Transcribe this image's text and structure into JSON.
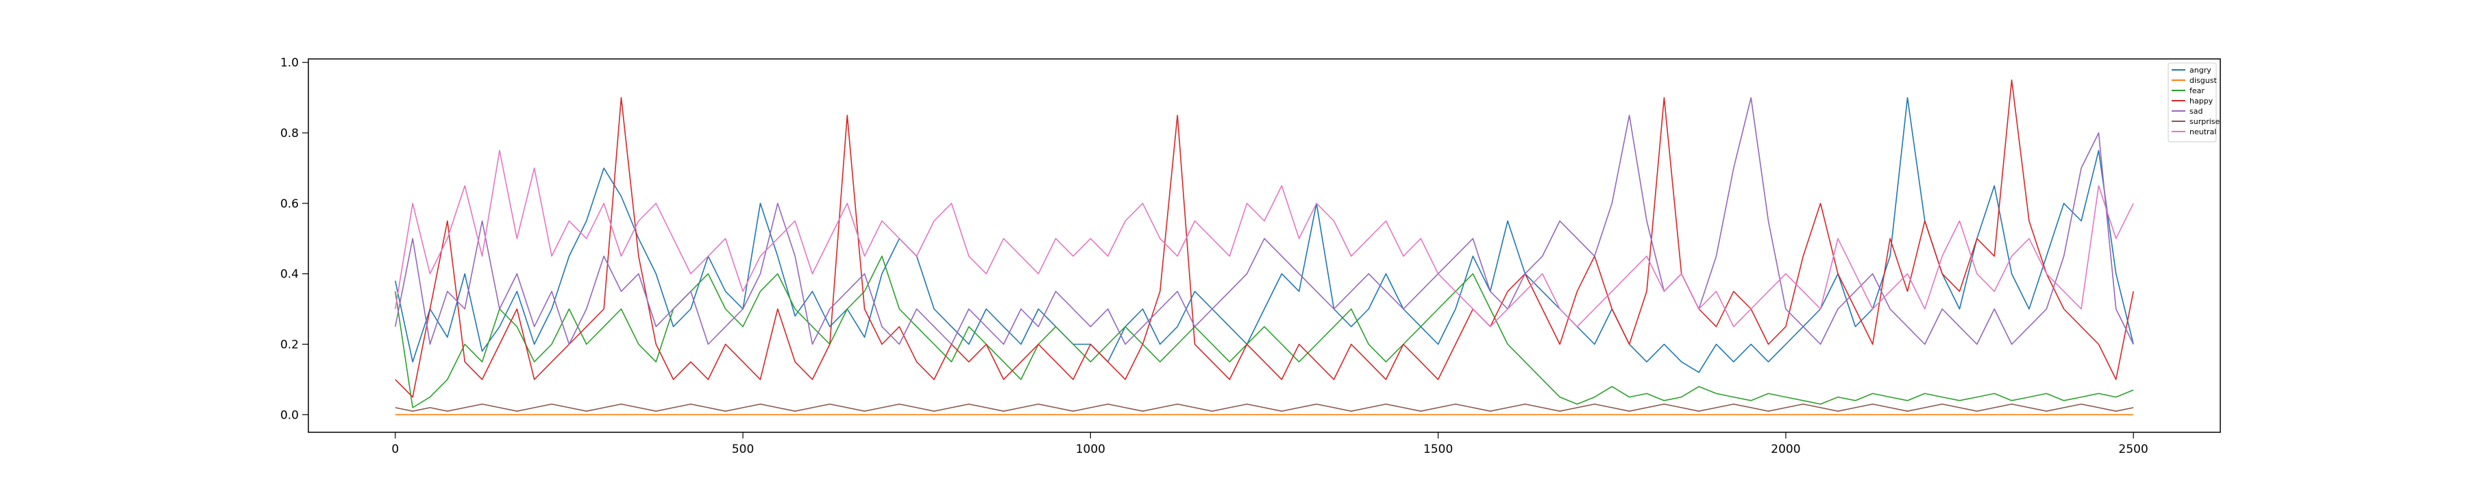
{
  "chart_data": {
    "type": "line",
    "title": "",
    "xlabel": "",
    "ylabel": "",
    "xlim": [
      -125,
      2625
    ],
    "ylim": [
      -0.05,
      1.01
    ],
    "x_ticks": [
      0,
      500,
      1000,
      1500,
      2000,
      2500
    ],
    "y_ticks": [
      0.0,
      0.2,
      0.4,
      0.6,
      0.8,
      1.0
    ],
    "x_tick_labels": [
      "0",
      "500",
      "1000",
      "1500",
      "2000",
      "2500"
    ],
    "y_tick_labels": [
      "0.0",
      "0.2",
      "0.4",
      "0.6",
      "0.8",
      "1.0"
    ],
    "grid": false,
    "legend_position": "top-right",
    "n_points": 2500,
    "sampling_note": "representative samples (x step 25) approximating the dense noisy traces",
    "x": [
      0,
      25,
      50,
      75,
      100,
      125,
      150,
      175,
      200,
      225,
      250,
      275,
      300,
      325,
      350,
      375,
      400,
      425,
      450,
      475,
      500,
      525,
      550,
      575,
      600,
      625,
      650,
      675,
      700,
      725,
      750,
      775,
      800,
      825,
      850,
      875,
      900,
      925,
      950,
      975,
      1000,
      1025,
      1050,
      1075,
      1100,
      1125,
      1150,
      1175,
      1200,
      1225,
      1250,
      1275,
      1300,
      1325,
      1350,
      1375,
      1400,
      1425,
      1450,
      1475,
      1500,
      1525,
      1550,
      1575,
      1600,
      1625,
      1650,
      1675,
      1700,
      1725,
      1750,
      1775,
      1800,
      1825,
      1850,
      1875,
      1900,
      1925,
      1950,
      1975,
      2000,
      2025,
      2050,
      2075,
      2100,
      2125,
      2150,
      2175,
      2200,
      2225,
      2250,
      2275,
      2300,
      2325,
      2350,
      2375,
      2400,
      2425,
      2450,
      2475,
      2500
    ],
    "series": [
      {
        "name": "angry",
        "color": "#1f77b4",
        "values": [
          0.38,
          0.15,
          0.3,
          0.22,
          0.4,
          0.18,
          0.25,
          0.35,
          0.2,
          0.3,
          0.45,
          0.55,
          0.7,
          0.62,
          0.5,
          0.4,
          0.25,
          0.3,
          0.45,
          0.35,
          0.3,
          0.6,
          0.45,
          0.28,
          0.35,
          0.25,
          0.3,
          0.22,
          0.4,
          0.5,
          0.45,
          0.3,
          0.25,
          0.2,
          0.3,
          0.25,
          0.2,
          0.3,
          0.25,
          0.2,
          0.2,
          0.15,
          0.25,
          0.3,
          0.2,
          0.25,
          0.35,
          0.3,
          0.25,
          0.2,
          0.3,
          0.4,
          0.35,
          0.6,
          0.3,
          0.25,
          0.3,
          0.4,
          0.3,
          0.25,
          0.2,
          0.3,
          0.45,
          0.35,
          0.55,
          0.4,
          0.35,
          0.3,
          0.25,
          0.2,
          0.3,
          0.2,
          0.15,
          0.2,
          0.15,
          0.12,
          0.2,
          0.15,
          0.2,
          0.15,
          0.2,
          0.25,
          0.3,
          0.4,
          0.25,
          0.3,
          0.45,
          0.9,
          0.55,
          0.4,
          0.3,
          0.5,
          0.65,
          0.4,
          0.3,
          0.45,
          0.6,
          0.55,
          0.75,
          0.4,
          0.2
        ]
      },
      {
        "name": "disgust",
        "color": "#ff7f0e",
        "values": [
          0.0,
          0.0,
          0.0,
          0.0,
          0.0,
          0.0,
          0.0,
          0.0,
          0.0,
          0.0,
          0.0,
          0.0,
          0.0,
          0.0,
          0.0,
          0.0,
          0.0,
          0.0,
          0.0,
          0.0,
          0.0,
          0.0,
          0.0,
          0.0,
          0.0,
          0.0,
          0.0,
          0.0,
          0.0,
          0.0,
          0.0,
          0.0,
          0.0,
          0.0,
          0.0,
          0.0,
          0.0,
          0.0,
          0.0,
          0.0,
          0.0,
          0.0,
          0.0,
          0.0,
          0.0,
          0.0,
          0.0,
          0.0,
          0.0,
          0.0,
          0.0,
          0.0,
          0.0,
          0.0,
          0.0,
          0.0,
          0.0,
          0.0,
          0.0,
          0.0,
          0.0,
          0.0,
          0.0,
          0.0,
          0.0,
          0.0,
          0.0,
          0.0,
          0.0,
          0.0,
          0.0,
          0.0,
          0.0,
          0.0,
          0.0,
          0.0,
          0.0,
          0.0,
          0.0,
          0.0,
          0.0,
          0.0,
          0.0,
          0.0,
          0.0,
          0.0,
          0.0,
          0.0,
          0.0,
          0.0,
          0.0,
          0.0,
          0.0,
          0.0,
          0.0,
          0.0,
          0.0,
          0.0,
          0.0,
          0.0,
          0.0
        ]
      },
      {
        "name": "fear",
        "color": "#2ca02c",
        "values": [
          0.35,
          0.02,
          0.05,
          0.1,
          0.2,
          0.15,
          0.3,
          0.25,
          0.15,
          0.2,
          0.3,
          0.2,
          0.25,
          0.3,
          0.2,
          0.15,
          0.3,
          0.35,
          0.4,
          0.3,
          0.25,
          0.35,
          0.4,
          0.3,
          0.25,
          0.2,
          0.3,
          0.35,
          0.45,
          0.3,
          0.25,
          0.2,
          0.15,
          0.25,
          0.2,
          0.15,
          0.1,
          0.2,
          0.25,
          0.2,
          0.15,
          0.2,
          0.25,
          0.2,
          0.15,
          0.2,
          0.25,
          0.2,
          0.15,
          0.2,
          0.25,
          0.2,
          0.15,
          0.2,
          0.25,
          0.3,
          0.2,
          0.15,
          0.2,
          0.25,
          0.3,
          0.35,
          0.4,
          0.3,
          0.2,
          0.15,
          0.1,
          0.05,
          0.03,
          0.05,
          0.08,
          0.05,
          0.06,
          0.04,
          0.05,
          0.08,
          0.06,
          0.05,
          0.04,
          0.06,
          0.05,
          0.04,
          0.03,
          0.05,
          0.04,
          0.06,
          0.05,
          0.04,
          0.06,
          0.05,
          0.04,
          0.05,
          0.06,
          0.04,
          0.05,
          0.06,
          0.04,
          0.05,
          0.06,
          0.05,
          0.07
        ]
      },
      {
        "name": "happy",
        "color": "#d62728",
        "values": [
          0.1,
          0.05,
          0.3,
          0.55,
          0.15,
          0.1,
          0.2,
          0.3,
          0.1,
          0.15,
          0.2,
          0.25,
          0.3,
          0.9,
          0.45,
          0.2,
          0.1,
          0.15,
          0.1,
          0.2,
          0.15,
          0.1,
          0.3,
          0.15,
          0.1,
          0.2,
          0.85,
          0.3,
          0.2,
          0.25,
          0.15,
          0.1,
          0.2,
          0.15,
          0.2,
          0.1,
          0.15,
          0.2,
          0.15,
          0.1,
          0.2,
          0.15,
          0.1,
          0.2,
          0.35,
          0.85,
          0.2,
          0.15,
          0.1,
          0.2,
          0.15,
          0.1,
          0.2,
          0.15,
          0.1,
          0.2,
          0.15,
          0.1,
          0.2,
          0.15,
          0.1,
          0.2,
          0.3,
          0.25,
          0.35,
          0.4,
          0.3,
          0.2,
          0.35,
          0.45,
          0.3,
          0.2,
          0.35,
          0.9,
          0.4,
          0.3,
          0.25,
          0.35,
          0.3,
          0.2,
          0.25,
          0.45,
          0.6,
          0.4,
          0.3,
          0.2,
          0.5,
          0.35,
          0.55,
          0.4,
          0.35,
          0.5,
          0.45,
          0.95,
          0.55,
          0.4,
          0.3,
          0.25,
          0.2,
          0.1,
          0.35
        ]
      },
      {
        "name": "sad",
        "color": "#9467bd",
        "values": [
          0.25,
          0.5,
          0.2,
          0.35,
          0.3,
          0.55,
          0.3,
          0.4,
          0.25,
          0.35,
          0.2,
          0.3,
          0.45,
          0.35,
          0.4,
          0.25,
          0.3,
          0.35,
          0.2,
          0.25,
          0.3,
          0.4,
          0.6,
          0.45,
          0.2,
          0.3,
          0.35,
          0.4,
          0.25,
          0.2,
          0.3,
          0.25,
          0.2,
          0.3,
          0.25,
          0.2,
          0.3,
          0.25,
          0.35,
          0.3,
          0.25,
          0.3,
          0.2,
          0.25,
          0.3,
          0.35,
          0.25,
          0.3,
          0.35,
          0.4,
          0.5,
          0.45,
          0.4,
          0.35,
          0.3,
          0.35,
          0.4,
          0.35,
          0.3,
          0.35,
          0.4,
          0.45,
          0.5,
          0.35,
          0.3,
          0.4,
          0.45,
          0.55,
          0.5,
          0.45,
          0.6,
          0.85,
          0.55,
          0.35,
          0.4,
          0.3,
          0.45,
          0.7,
          0.9,
          0.55,
          0.3,
          0.25,
          0.2,
          0.3,
          0.35,
          0.4,
          0.3,
          0.25,
          0.2,
          0.3,
          0.25,
          0.2,
          0.3,
          0.2,
          0.25,
          0.3,
          0.45,
          0.7,
          0.8,
          0.3,
          0.2
        ]
      },
      {
        "name": "surprise",
        "color": "#8c564b",
        "values": [
          0.02,
          0.01,
          0.02,
          0.01,
          0.02,
          0.03,
          0.02,
          0.01,
          0.02,
          0.03,
          0.02,
          0.01,
          0.02,
          0.03,
          0.02,
          0.01,
          0.02,
          0.03,
          0.02,
          0.01,
          0.02,
          0.03,
          0.02,
          0.01,
          0.02,
          0.03,
          0.02,
          0.01,
          0.02,
          0.03,
          0.02,
          0.01,
          0.02,
          0.03,
          0.02,
          0.01,
          0.02,
          0.03,
          0.02,
          0.01,
          0.02,
          0.03,
          0.02,
          0.01,
          0.02,
          0.03,
          0.02,
          0.01,
          0.02,
          0.03,
          0.02,
          0.01,
          0.02,
          0.03,
          0.02,
          0.01,
          0.02,
          0.03,
          0.02,
          0.01,
          0.02,
          0.03,
          0.02,
          0.01,
          0.02,
          0.03,
          0.02,
          0.01,
          0.02,
          0.03,
          0.02,
          0.01,
          0.02,
          0.03,
          0.02,
          0.01,
          0.02,
          0.03,
          0.02,
          0.01,
          0.02,
          0.03,
          0.02,
          0.01,
          0.02,
          0.03,
          0.02,
          0.01,
          0.02,
          0.03,
          0.02,
          0.01,
          0.02,
          0.03,
          0.02,
          0.01,
          0.02,
          0.03,
          0.02,
          0.01,
          0.02
        ]
      },
      {
        "name": "neutral",
        "color": "#e377c2",
        "values": [
          0.3,
          0.6,
          0.4,
          0.5,
          0.65,
          0.45,
          0.75,
          0.5,
          0.7,
          0.45,
          0.55,
          0.5,
          0.6,
          0.45,
          0.55,
          0.6,
          0.5,
          0.4,
          0.45,
          0.5,
          0.35,
          0.45,
          0.5,
          0.55,
          0.4,
          0.5,
          0.6,
          0.45,
          0.55,
          0.5,
          0.45,
          0.55,
          0.6,
          0.45,
          0.4,
          0.5,
          0.45,
          0.4,
          0.5,
          0.45,
          0.5,
          0.45,
          0.55,
          0.6,
          0.5,
          0.45,
          0.55,
          0.5,
          0.45,
          0.6,
          0.55,
          0.65,
          0.5,
          0.6,
          0.55,
          0.45,
          0.5,
          0.55,
          0.45,
          0.5,
          0.4,
          0.35,
          0.3,
          0.25,
          0.3,
          0.35,
          0.4,
          0.3,
          0.25,
          0.3,
          0.35,
          0.4,
          0.45,
          0.35,
          0.4,
          0.3,
          0.35,
          0.25,
          0.3,
          0.35,
          0.4,
          0.35,
          0.3,
          0.5,
          0.4,
          0.3,
          0.35,
          0.4,
          0.3,
          0.45,
          0.55,
          0.4,
          0.35,
          0.45,
          0.5,
          0.4,
          0.35,
          0.3,
          0.65,
          0.5,
          0.6
        ]
      }
    ]
  }
}
